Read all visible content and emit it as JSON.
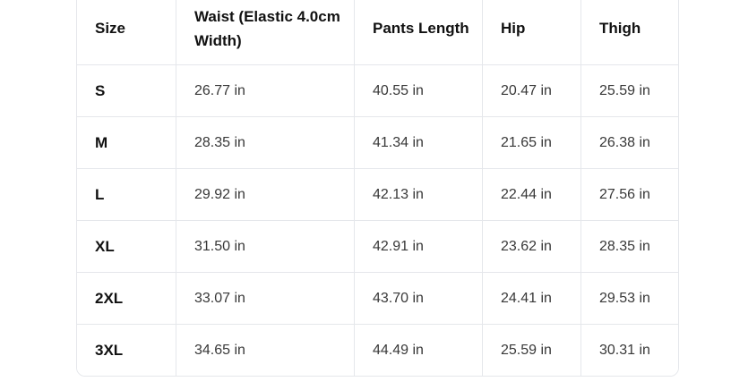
{
  "table": {
    "columns": {
      "size": "Size",
      "waist": "Waist (Elastic 4.0cm Width)",
      "pants_length": "Pants Length",
      "hip": "Hip",
      "thigh": "Thigh"
    },
    "rows": [
      {
        "size": "S",
        "waist": "26.77 in",
        "pants_length": "40.55 in",
        "hip": "20.47 in",
        "thigh": "25.59 in"
      },
      {
        "size": "M",
        "waist": "28.35 in",
        "pants_length": "41.34 in",
        "hip": "21.65 in",
        "thigh": "26.38 in"
      },
      {
        "size": "L",
        "waist": "29.92 in",
        "pants_length": "42.13 in",
        "hip": "22.44 in",
        "thigh": "27.56 in"
      },
      {
        "size": "XL",
        "waist": "31.50 in",
        "pants_length": "42.91 in",
        "hip": "23.62 in",
        "thigh": "28.35 in"
      },
      {
        "size": "2XL",
        "waist": "33.07 in",
        "pants_length": "43.70 in",
        "hip": "24.41 in",
        "thigh": "29.53 in"
      },
      {
        "size": "3XL",
        "waist": "34.65 in",
        "pants_length": "44.49 in",
        "hip": "25.59 in",
        "thigh": "30.31 in"
      }
    ],
    "unit": "in",
    "colors": {
      "border": "#e5e7eb",
      "header_text": "#111111",
      "cell_text": "#383838",
      "background": "#ffffff"
    }
  }
}
